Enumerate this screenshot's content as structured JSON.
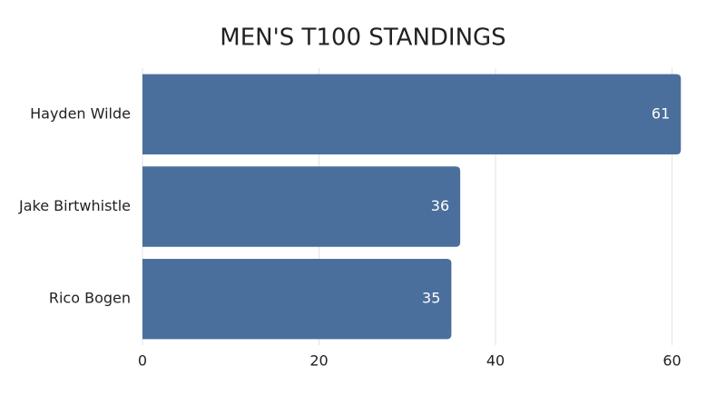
{
  "chart_data": {
    "type": "hbar",
    "title": "MEN'S T100 STANDINGS",
    "categories": [
      "Hayden Wilde",
      "Jake Birtwhistle",
      "Rico Bogen"
    ],
    "values": [
      61,
      36,
      35
    ],
    "color": "#4a6f9c",
    "xlim": [
      0,
      62
    ],
    "xticks": [
      0,
      20,
      40,
      60
    ],
    "grid": true
  }
}
